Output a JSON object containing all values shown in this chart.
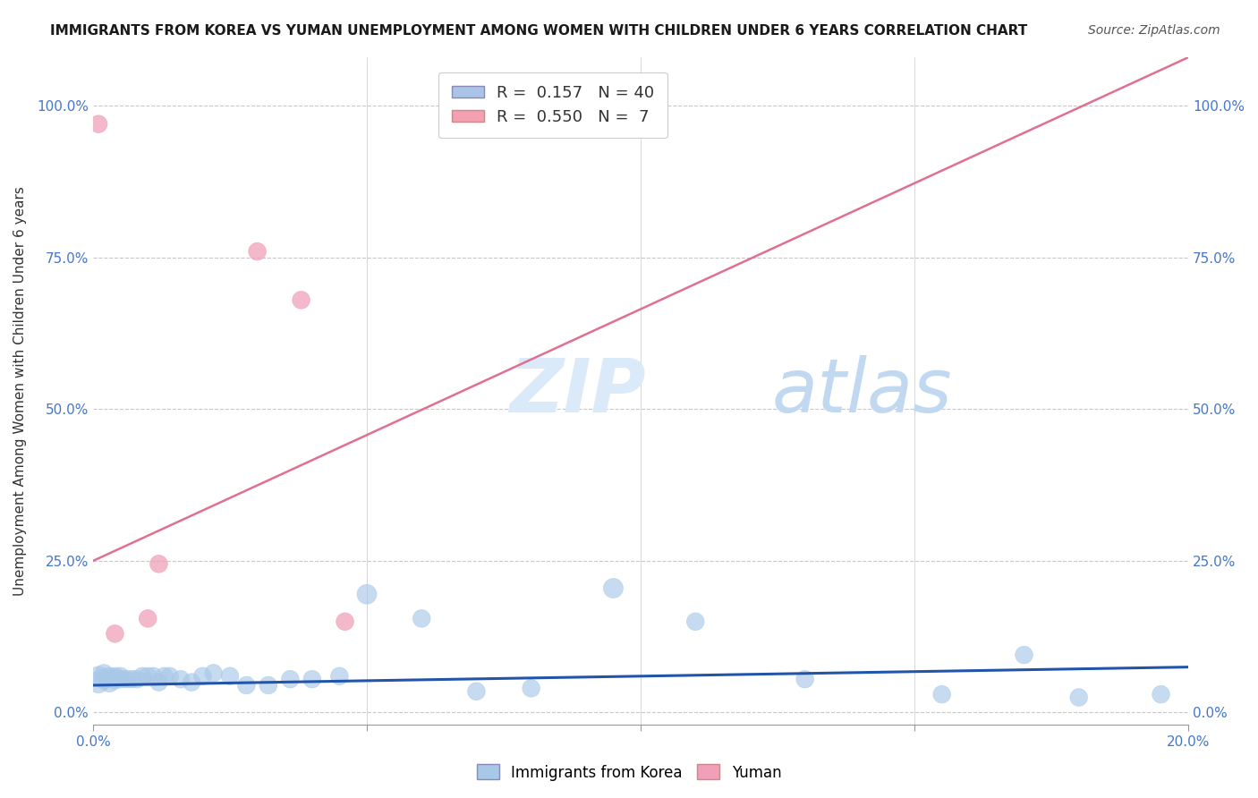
{
  "title": "IMMIGRANTS FROM KOREA VS YUMAN UNEMPLOYMENT AMONG WOMEN WITH CHILDREN UNDER 6 YEARS CORRELATION CHART",
  "source": "Source: ZipAtlas.com",
  "ylabel": "Unemployment Among Women with Children Under 6 years",
  "ytick_labels": [
    "0.0%",
    "25.0%",
    "50.0%",
    "75.0%",
    "100.0%"
  ],
  "ytick_values": [
    0.0,
    0.25,
    0.5,
    0.75,
    1.0
  ],
  "xlim": [
    0.0,
    0.2
  ],
  "ylim": [
    -0.02,
    1.08
  ],
  "legend_entries": [
    {
      "label": "R =  0.157   N = 40",
      "color": "#aac4e8"
    },
    {
      "label": "R =  0.550   N =  7",
      "color": "#f4a0b0"
    }
  ],
  "korea_scatter_x": [
    0.001,
    0.001,
    0.002,
    0.002,
    0.003,
    0.003,
    0.004,
    0.004,
    0.005,
    0.005,
    0.006,
    0.007,
    0.008,
    0.009,
    0.01,
    0.011,
    0.012,
    0.013,
    0.014,
    0.016,
    0.018,
    0.02,
    0.022,
    0.025,
    0.028,
    0.032,
    0.036,
    0.04,
    0.045,
    0.05,
    0.06,
    0.07,
    0.08,
    0.095,
    0.11,
    0.13,
    0.155,
    0.17,
    0.18,
    0.195
  ],
  "korea_scatter_y": [
    0.05,
    0.06,
    0.055,
    0.065,
    0.05,
    0.06,
    0.055,
    0.06,
    0.055,
    0.06,
    0.055,
    0.055,
    0.055,
    0.06,
    0.06,
    0.06,
    0.05,
    0.06,
    0.06,
    0.055,
    0.05,
    0.06,
    0.065,
    0.06,
    0.045,
    0.045,
    0.055,
    0.055,
    0.06,
    0.195,
    0.155,
    0.035,
    0.04,
    0.205,
    0.15,
    0.055,
    0.03,
    0.095,
    0.025,
    0.03
  ],
  "korea_scatter_size": [
    300,
    250,
    250,
    200,
    250,
    200,
    250,
    200,
    200,
    200,
    200,
    200,
    200,
    200,
    200,
    200,
    200,
    200,
    200,
    200,
    200,
    200,
    200,
    200,
    200,
    200,
    200,
    200,
    200,
    250,
    200,
    200,
    200,
    250,
    200,
    200,
    200,
    200,
    200,
    200
  ],
  "yuman_scatter_x": [
    0.001,
    0.004,
    0.01,
    0.012,
    0.03,
    0.038,
    0.046
  ],
  "yuman_scatter_y": [
    0.97,
    0.13,
    0.155,
    0.245,
    0.76,
    0.68,
    0.15
  ],
  "yuman_scatter_size": [
    200,
    200,
    200,
    200,
    200,
    200,
    200
  ],
  "korea_line_x": [
    0.0,
    0.2
  ],
  "korea_line_y": [
    0.045,
    0.075
  ],
  "yuman_line_x": [
    0.0,
    0.2
  ],
  "yuman_line_y": [
    0.25,
    1.08
  ],
  "korea_color": "#a8c8e8",
  "yuman_color": "#f0a0b8",
  "korea_line_color": "#2255aa",
  "yuman_line_color": "#e07090",
  "background_color": "#ffffff",
  "grid_color": "#c8c8c8",
  "watermark_color": "#daeaf8",
  "title_fontsize": 11,
  "axis_label_fontsize": 11,
  "tick_fontsize": 11,
  "source_fontsize": 10
}
